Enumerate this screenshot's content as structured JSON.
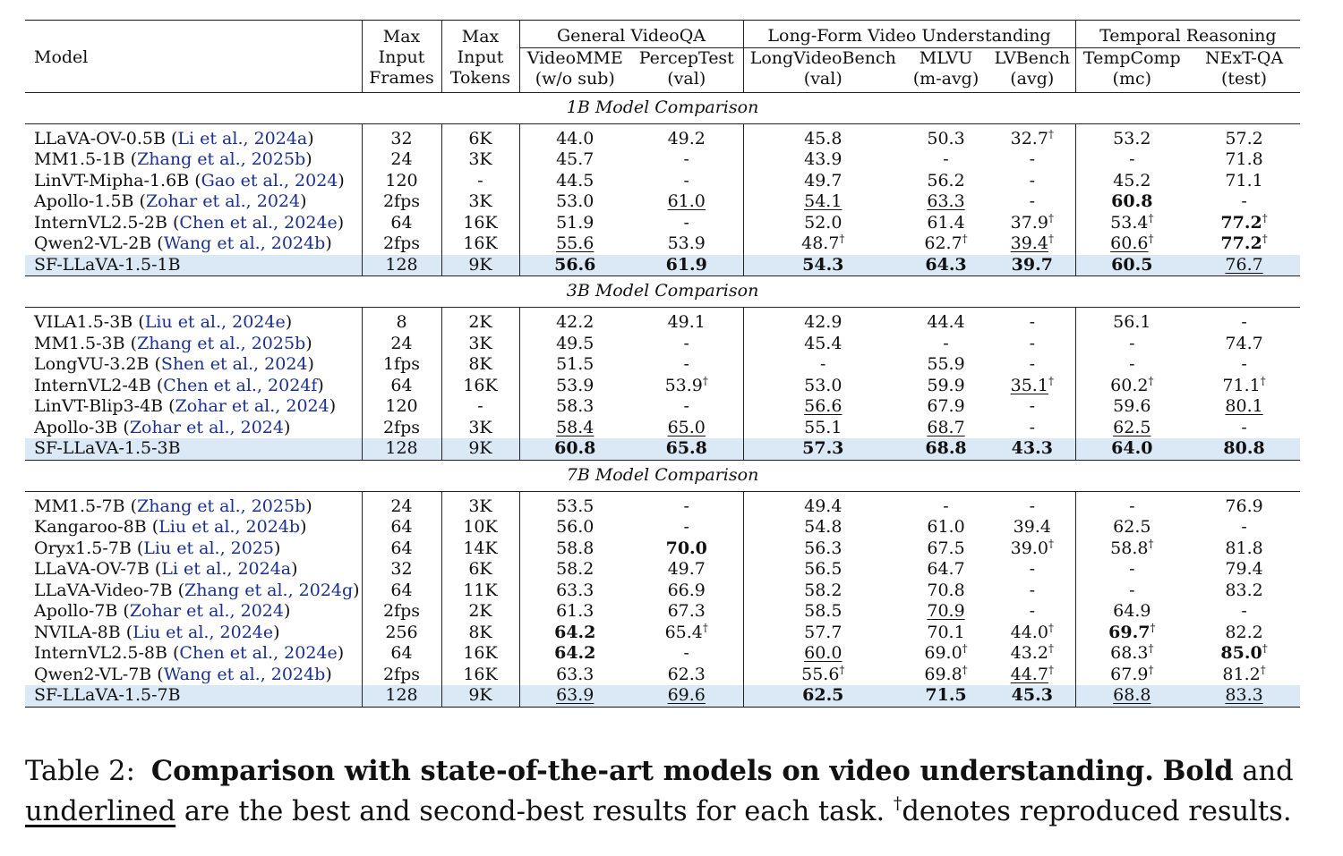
{
  "headers": {
    "model": "Model",
    "max_frames": [
      "Max",
      "Input",
      "Frames"
    ],
    "max_tokens": [
      "Max",
      "Input",
      "Tokens"
    ],
    "groups": [
      "General VideoQA",
      "Long-Form Video Understanding",
      "Temporal Reasoning"
    ],
    "benchmarks": [
      {
        "name": "VideoMME",
        "sub": "(w/o sub)"
      },
      {
        "name": "PercepTest",
        "sub": "(val)"
      },
      {
        "name": "LongVideoBench",
        "sub": "(val)"
      },
      {
        "name": "MLVU",
        "sub": "(m-avg)"
      },
      {
        "name": "LVBench",
        "sub": "(avg)"
      },
      {
        "name": "TempComp",
        "sub": "(mc)"
      },
      {
        "name": "NExT-QA",
        "sub": "(test)"
      }
    ]
  },
  "sections": [
    {
      "title": "1B Model Comparison",
      "rows": [
        {
          "model": "LLaVA-OV-0.5B",
          "cite": "Li et al., 2024a",
          "cells": [
            "32",
            "6K",
            "44.0",
            "49.2",
            "45.8",
            "50.3",
            "32.7†",
            "53.2",
            "57.2"
          ]
        },
        {
          "model": "MM1.5-1B",
          "cite": "Zhang et al., 2025b",
          "cells": [
            "24",
            "3K",
            "45.7",
            "-",
            "43.9",
            "-",
            "-",
            "-",
            "71.8"
          ]
        },
        {
          "model": "LinVT-Mipha-1.6B",
          "cite": "Gao et al., 2024",
          "cells": [
            "120",
            "-",
            "44.5",
            "-",
            "49.7",
            "56.2",
            "-",
            "45.2",
            "71.1"
          ]
        },
        {
          "model": "Apollo-1.5B",
          "cite": "Zohar et al., 2024",
          "cells": [
            "2fps",
            "3K",
            "53.0",
            "61.0",
            "54.1",
            "63.3",
            "-",
            "60.8",
            "-"
          ]
        },
        {
          "model": "InternVL2.5-2B",
          "cite": "Chen et al., 2024e",
          "cells": [
            "64",
            "16K",
            "51.9",
            "-",
            "52.0",
            "61.4",
            "37.9†",
            "53.4†",
            "77.2†"
          ]
        },
        {
          "model": "Qwen2-VL-2B",
          "cite": "Wang et al., 2024b",
          "cells": [
            "2fps",
            "16K",
            "55.6",
            "53.9",
            "48.7†",
            "62.7†",
            "39.4†",
            "60.6†",
            "77.2†"
          ]
        },
        {
          "model": "SF-LLaVA-1.5-1B",
          "cite": "",
          "cells": [
            "128",
            "9K",
            "56.6",
            "61.9",
            "54.3",
            "64.3",
            "39.7",
            "60.5",
            "76.7"
          ]
        }
      ]
    },
    {
      "title": "3B Model Comparison",
      "rows": [
        {
          "model": "VILA1.5-3B",
          "cite": "Liu et al., 2024e",
          "cells": [
            "8",
            "2K",
            "42.2",
            "49.1",
            "42.9",
            "44.4",
            "-",
            "56.1",
            "-"
          ]
        },
        {
          "model": "MM1.5-3B",
          "cite": "Zhang et al., 2025b",
          "cells": [
            "24",
            "3K",
            "49.5",
            "-",
            "45.4",
            "-",
            "-",
            "-",
            "74.7"
          ]
        },
        {
          "model": "LongVU-3.2B",
          "cite": "Shen et al., 2024",
          "cells": [
            "1fps",
            "8K",
            "51.5",
            "-",
            "-",
            "55.9",
            "-",
            "-",
            "-"
          ]
        },
        {
          "model": "InternVL2-4B",
          "cite": "Chen et al., 2024f",
          "cells": [
            "64",
            "16K",
            "53.9",
            "53.9†",
            "53.0",
            "59.9",
            "35.1†",
            "60.2†",
            "71.1†"
          ]
        },
        {
          "model": "LinVT-Blip3-4B",
          "cite": "Zohar et al., 2024",
          "cells": [
            "120",
            "-",
            "58.3",
            "-",
            "56.6",
            "67.9",
            "-",
            "59.6",
            "80.1"
          ]
        },
        {
          "model": "Apollo-3B",
          "cite": "Zohar et al., 2024",
          "cells": [
            "2fps",
            "3K",
            "58.4",
            "65.0",
            "55.1",
            "68.7",
            "-",
            "62.5",
            "-"
          ]
        },
        {
          "model": "SF-LLaVA-1.5-3B",
          "cite": "",
          "cells": [
            "128",
            "9K",
            "60.8",
            "65.8",
            "57.3",
            "68.8",
            "43.3",
            "64.0",
            "80.8"
          ]
        }
      ]
    },
    {
      "title": "7B Model Comparison",
      "rows": [
        {
          "model": "MM1.5-7B",
          "cite": "Zhang et al., 2025b",
          "cells": [
            "24",
            "3K",
            "53.5",
            "-",
            "49.4",
            "-",
            "-",
            "-",
            "76.9"
          ]
        },
        {
          "model": "Kangaroo-8B",
          "cite": "Liu et al., 2024b",
          "cells": [
            "64",
            "10K",
            "56.0",
            "-",
            "54.8",
            "61.0",
            "39.4",
            "62.5",
            "-"
          ]
        },
        {
          "model": "Oryx1.5-7B",
          "cite": "Liu et al., 2025",
          "cells": [
            "64",
            "14K",
            "58.8",
            "70.0",
            "56.3",
            "67.5",
            "39.0†",
            "58.8†",
            "81.8"
          ]
        },
        {
          "model": "LLaVA-OV-7B",
          "cite": "Li et al., 2024a",
          "cells": [
            "32",
            "6K",
            "58.2",
            "49.7",
            "56.5",
            "64.7",
            "-",
            "-",
            "79.4"
          ]
        },
        {
          "model": "LLaVA-Video-7B",
          "cite": "Zhang et al., 2024g",
          "cells": [
            "64",
            "11K",
            "63.3",
            "66.9",
            "58.2",
            "70.8",
            "-",
            "-",
            "83.2"
          ]
        },
        {
          "model": "Apollo-7B",
          "cite": "Zohar et al., 2024",
          "cells": [
            "2fps",
            "2K",
            "61.3",
            "67.3",
            "58.5",
            "70.9",
            "-",
            "64.9",
            "-"
          ]
        },
        {
          "model": "NVILA-8B",
          "cite": "Liu et al., 2024e",
          "cells": [
            "256",
            "8K",
            "64.2",
            "65.4†",
            "57.7",
            "70.1",
            "44.0†",
            "69.7†",
            "82.2"
          ]
        },
        {
          "model": "InternVL2.5-8B",
          "cite": "Chen et al., 2024e",
          "cells": [
            "64",
            "16K",
            "64.2",
            "-",
            "60.0",
            "69.0†",
            "43.2†",
            "68.3†",
            "85.0†"
          ]
        },
        {
          "model": "Qwen2-VL-7B",
          "cite": "Wang et al., 2024b",
          "cells": [
            "2fps",
            "16K",
            "63.3",
            "62.3",
            "55.6†",
            "69.8†",
            "44.7†",
            "67.9†",
            "81.2†"
          ]
        },
        {
          "model": "SF-LLaVA-1.5-7B",
          "cite": "",
          "cells": [
            "128",
            "9K",
            "63.9",
            "69.6",
            "62.5",
            "71.5",
            "45.3",
            "68.8",
            "83.3"
          ]
        }
      ]
    }
  ],
  "caption": {
    "label": "Table 2:",
    "title": "Comparison with state-of-the-art models on video understanding.",
    "bold_word": "Bold",
    "and_word": "and",
    "underlined_word": "underlined",
    "rest": "are the best and second-best results for each task.",
    "dagger": "†",
    "dagger_note": "denotes reproduced results."
  }
}
